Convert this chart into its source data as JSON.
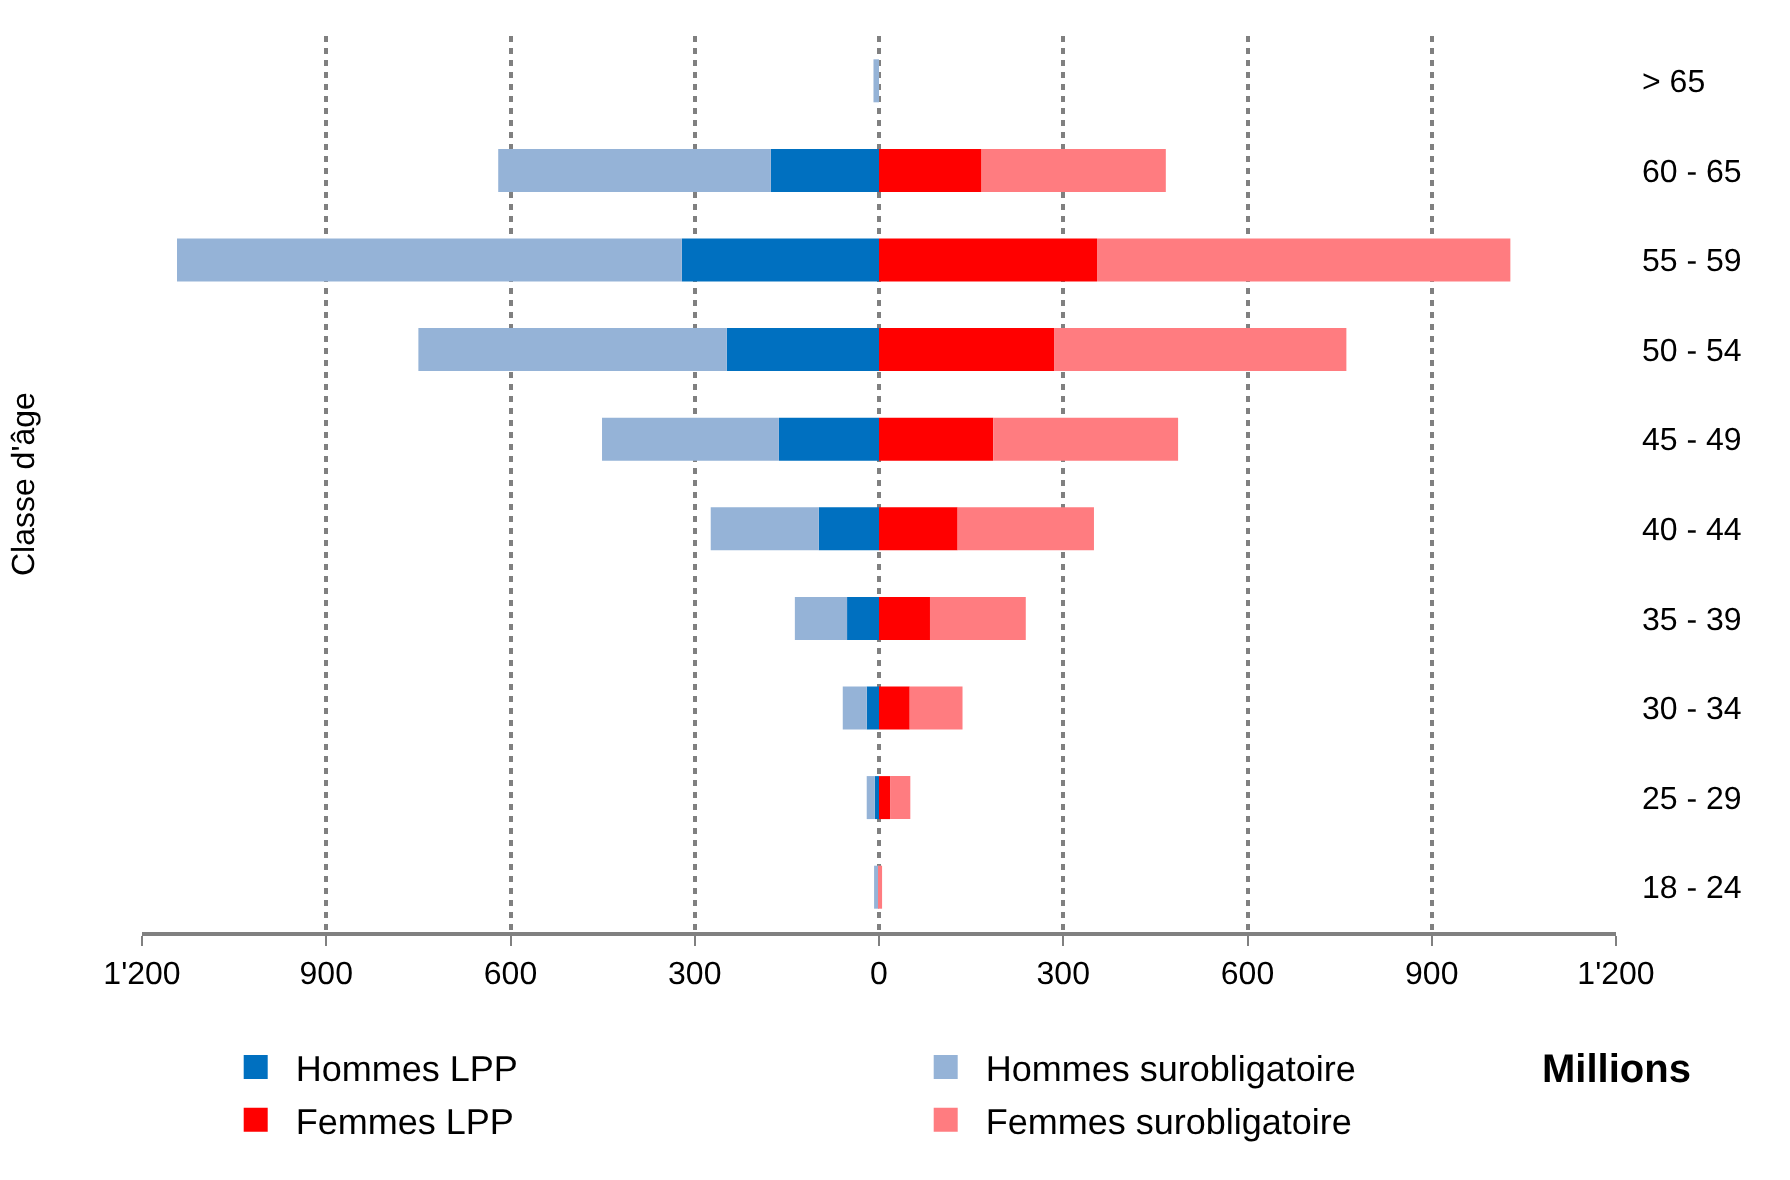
{
  "chart_data": {
    "type": "bar",
    "orientation": "horizontal",
    "stacked": true,
    "categories": [
      "> 65",
      "60 - 65",
      "55 - 59",
      "50 - 54",
      "45 - 49",
      "40 - 44",
      "35 - 39",
      "30 - 34",
      "25 - 29",
      "18 - 24"
    ],
    "series": [
      {
        "name": "Hommes LPP",
        "color": "#0070c0",
        "values": [
          null,
          -176,
          -321,
          -248,
          -163,
          -98,
          -52,
          -20,
          -7,
          null
        ]
      },
      {
        "name": "Hommes surobligatoire",
        "color": "#95b3d7",
        "values": [
          -9,
          -444,
          -822,
          -502,
          -288,
          -176,
          -85,
          -39,
          -13,
          -8
        ]
      },
      {
        "name": "Femmes LPP",
        "color": "#ff0000",
        "values": [
          null,
          167,
          355,
          285,
          186,
          128,
          83,
          50,
          18,
          null
        ]
      },
      {
        "name": "Femmes surobligatoire",
        "color": "#ff7c80",
        "values": [
          null,
          300,
          673,
          476,
          301,
          222,
          156,
          86,
          33,
          5
        ]
      }
    ],
    "xlim": [
      -1200,
      1200
    ],
    "xticks": [
      {
        "value": -1200,
        "label": "1'200"
      },
      {
        "value": -900,
        "label": "900"
      },
      {
        "value": -600,
        "label": "600"
      },
      {
        "value": -300,
        "label": "300"
      },
      0,
      300,
      600,
      900,
      {
        "value": 1200,
        "label": "1'200"
      }
    ],
    "xlabel": "Millions",
    "ylabel": "Classe d'âge",
    "grid": "x",
    "legend": "bottom"
  }
}
